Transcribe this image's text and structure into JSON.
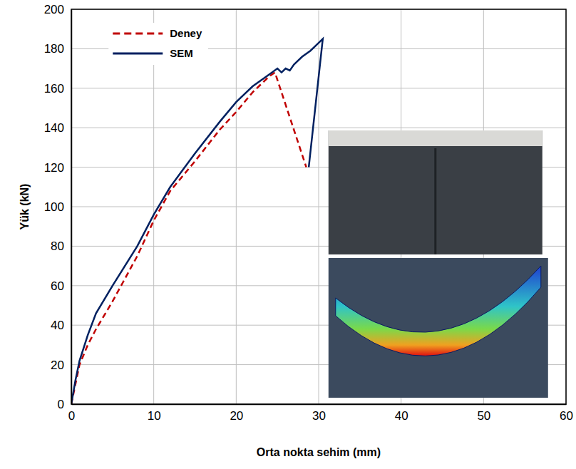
{
  "chart_data": {
    "type": "line",
    "x_label": "Orta nokta sehim (mm)",
    "y_label": "Yük (kN)",
    "xlim": [
      0,
      60
    ],
    "xticks": [
      0,
      10,
      20,
      30,
      40,
      50,
      60
    ],
    "ylim": [
      0,
      200
    ],
    "yticks": [
      0,
      20,
      40,
      60,
      80,
      100,
      120,
      140,
      160,
      180,
      200
    ],
    "grid": true,
    "legend": "upper left",
    "series": [
      {
        "name": "Deney",
        "color": "#c00000",
        "line_style": "dashed",
        "x": [
          0,
          0.5,
          1,
          2,
          3,
          5,
          8,
          10,
          12,
          15,
          18,
          20,
          22,
          23,
          24,
          24.7,
          28.5
        ],
        "values": [
          0,
          10,
          20,
          30,
          38,
          52,
          75,
          93,
          108,
          123,
          139,
          148,
          158,
          162,
          166,
          168,
          120
        ]
      },
      {
        "name": "SEM",
        "color": "#002060",
        "line_style": "solid",
        "x": [
          0,
          0.5,
          1,
          2,
          3,
          5,
          8,
          10,
          12,
          15,
          18,
          20,
          22,
          24,
          25,
          25.5,
          26,
          26.5,
          27,
          28,
          29,
          30,
          30.5,
          28.8
        ],
        "values": [
          0,
          12,
          22,
          35,
          46,
          60,
          80,
          96,
          110,
          127,
          143,
          153,
          161,
          167,
          170,
          168,
          170,
          169,
          172,
          176,
          179,
          183,
          185,
          120
        ]
      }
    ]
  }
}
